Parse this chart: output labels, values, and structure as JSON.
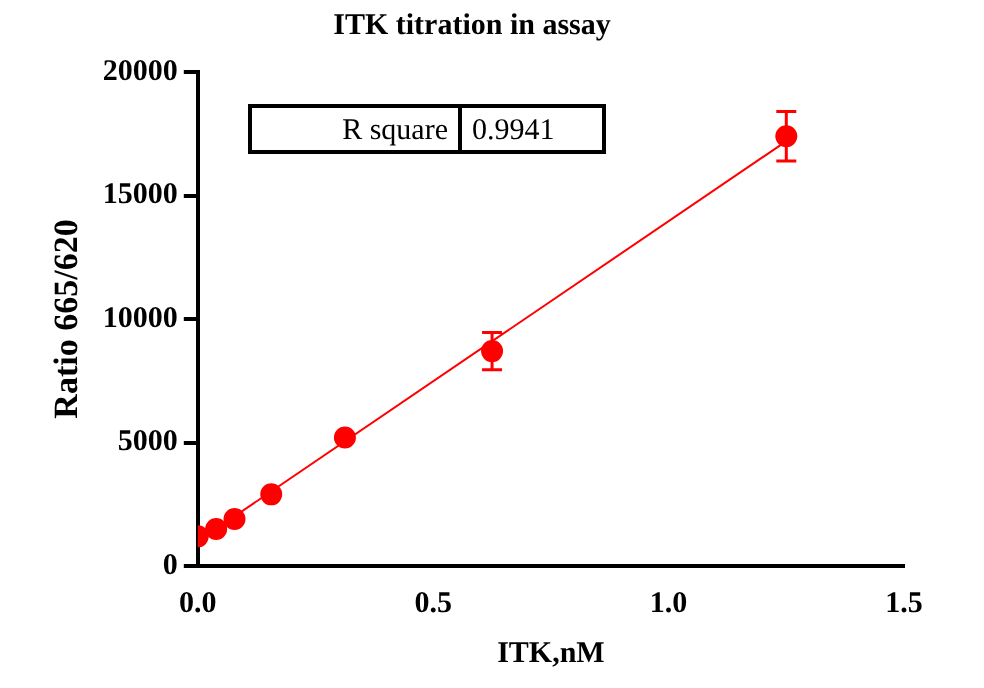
{
  "chart_data": {
    "type": "scatter",
    "title": "ITK titration in assay",
    "xlabel": "ITK,nM",
    "ylabel": "Ratio 665/620",
    "x": [
      0,
      0.039,
      0.078,
      0.156,
      0.3125,
      0.625,
      1.25
    ],
    "series": [
      {
        "type": "scatter",
        "marker": "circle",
        "color": "#ff0000",
        "values": [
          1200,
          1500,
          1900,
          2900,
          5200,
          8700,
          17400
        ],
        "errors": [
          null,
          null,
          null,
          null,
          null,
          750,
          1000
        ]
      },
      {
        "type": "line",
        "color": "#ff0000",
        "x": [
          0,
          1.25
        ],
        "values": [
          1000,
          17200
        ]
      }
    ],
    "annotations": [
      "R square",
      "0.9941"
    ],
    "xlim": [
      0,
      1.5
    ],
    "xticks": [
      {
        "value": 0,
        "label": "0.0"
      },
      {
        "value": 0.5,
        "label": "0.5"
      },
      {
        "value": 1,
        "label": "1.0"
      },
      {
        "value": 1.5,
        "label": "1.5"
      }
    ],
    "ylim": [
      0,
      20000
    ],
    "yticks": [
      0,
      5000,
      10000,
      15000,
      20000
    ],
    "grid": false,
    "legend": false,
    "line_style": "solid"
  }
}
